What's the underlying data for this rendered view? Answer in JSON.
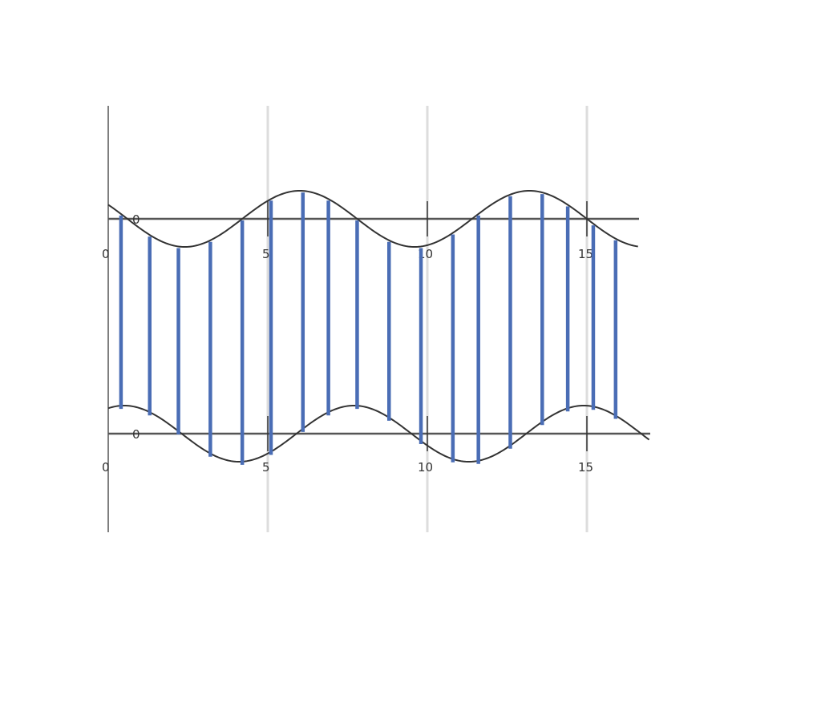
{
  "colors": {
    "wave": "#333333",
    "axis": "#555555",
    "grid": "#dddddd",
    "sticks": "#4a6db5"
  },
  "top_axis": {
    "zero_label": "0",
    "tick_labels": [
      "0",
      "5",
      "10",
      "15"
    ]
  },
  "bottom_axis": {
    "zero_label": "0",
    "tick_labels": [
      "0",
      "5",
      "10",
      "15"
    ]
  },
  "chart_data": {
    "type": "line",
    "x_ticks": [
      0,
      5,
      10,
      15
    ],
    "top_wave": {
      "period": 7.2,
      "amplitude": 1,
      "phase_peak_x": 6
    },
    "bottom_wave": {
      "period": 7.2,
      "amplitude": 1,
      "phase_peak_x": 7.7
    },
    "sticks_x": [
      0.4,
      1.3,
      2.2,
      3.2,
      4.2,
      5.1,
      6.1,
      6.9,
      7.8,
      8.8,
      9.8,
      10.8,
      11.6,
      12.6,
      13.6,
      14.4,
      15.2,
      15.9
    ]
  }
}
